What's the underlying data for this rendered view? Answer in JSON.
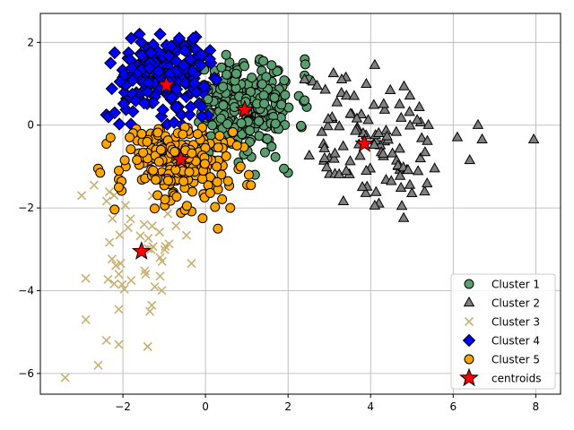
{
  "chart_data": {
    "type": "scatter",
    "title": "",
    "xlabel": "",
    "ylabel": "",
    "xlim": [
      -4.0,
      8.6
    ],
    "ylim": [
      -6.5,
      2.7
    ],
    "xticks": [
      -2,
      0,
      2,
      4,
      6,
      8
    ],
    "xtick_labels": [
      "−2",
      "0",
      "2",
      "4",
      "6",
      "8"
    ],
    "yticks": [
      -6,
      -4,
      -2,
      0,
      2
    ],
    "ytick_labels": [
      "−6",
      "−4",
      "−2",
      "0",
      "2"
    ],
    "grid": true,
    "legend_position": "lower-right",
    "series": [
      {
        "name": "Cluster 1",
        "marker": "circle",
        "color": "#5a9e6f",
        "center": [
          0.9,
          0.5
        ],
        "spread": [
          0.65,
          0.55
        ],
        "count": 260,
        "seed": 11,
        "bounds": [
          -0.2,
          2.5,
          -1.2,
          1.7
        ],
        "points": [
          [
            0.5,
            1.7
          ],
          [
            1.4,
            1.55
          ],
          [
            1.6,
            1.45
          ],
          [
            2.4,
            1.2
          ],
          [
            2.5,
            1.1
          ],
          [
            1.2,
            -1.2
          ],
          [
            0.8,
            -0.9
          ],
          [
            2.0,
            -1.15
          ],
          [
            1.9,
            -1.05
          ],
          [
            -0.1,
            0.3
          ],
          [
            2.4,
            0.6
          ]
        ]
      },
      {
        "name": "Cluster 2",
        "marker": "triangle",
        "color": "#808080",
        "center": [
          4.0,
          -0.5
        ],
        "spread": [
          0.9,
          0.65
        ],
        "count": 90,
        "seed": 23,
        "bounds": [
          2.2,
          5.4,
          -2.0,
          1.0
        ],
        "points": [
          [
            3.1,
            1.25
          ],
          [
            3.4,
            1.15
          ],
          [
            3.3,
            1.1
          ],
          [
            4.1,
            1.45
          ],
          [
            3.6,
            0.7
          ],
          [
            4.7,
            0.5
          ],
          [
            2.4,
            1.1
          ],
          [
            2.6,
            1.05
          ],
          [
            2.7,
            0.95
          ],
          [
            2.9,
            0.85
          ],
          [
            6.1,
            -0.3
          ],
          [
            6.6,
            0.0
          ],
          [
            6.7,
            -0.35
          ],
          [
            6.4,
            -0.85
          ],
          [
            7.95,
            -0.35
          ],
          [
            5.4,
            0.0
          ],
          [
            5.55,
            -1.05
          ],
          [
            4.8,
            -2.25
          ],
          [
            4.95,
            -1.45
          ],
          [
            5.0,
            -1.65
          ],
          [
            4.2,
            -1.9
          ],
          [
            4.1,
            -1.95
          ],
          [
            3.8,
            -1.5
          ],
          [
            4.3,
            -0.7
          ]
        ]
      },
      {
        "name": "Cluster 3",
        "marker": "x",
        "color": "#c8b071",
        "center": [
          -1.6,
          -3.0
        ],
        "spread": [
          0.55,
          0.8
        ],
        "count": 38,
        "seed": 37,
        "bounds": [
          -2.6,
          -0.3,
          -4.0,
          -1.6
        ],
        "points": [
          [
            -3.4,
            -6.1
          ],
          [
            -2.6,
            -5.8
          ],
          [
            -2.4,
            -5.2
          ],
          [
            -2.1,
            -5.3
          ],
          [
            -1.4,
            -5.35
          ],
          [
            -1.35,
            -4.5
          ],
          [
            -1.3,
            -4.35
          ],
          [
            -2.1,
            -4.45
          ],
          [
            -2.9,
            -4.7
          ],
          [
            -2.9,
            -3.7
          ],
          [
            -3.0,
            -1.7
          ],
          [
            -2.7,
            -1.45
          ],
          [
            -2.1,
            -3.6
          ],
          [
            -1.45,
            -3.6
          ],
          [
            -1.1,
            -3.65
          ],
          [
            -1.1,
            -3.2
          ]
        ]
      },
      {
        "name": "Cluster 4",
        "marker": "diamond",
        "color": "#0000ff",
        "center": [
          -1.0,
          1.1
        ],
        "spread": [
          0.75,
          0.6
        ],
        "count": 190,
        "seed": 53,
        "bounds": [
          -2.4,
          0.4,
          -0.05,
          2.3
        ],
        "points": [
          [
            -2.4,
            0.25
          ],
          [
            -2.35,
            0.2
          ],
          [
            -2.2,
            0.3
          ],
          [
            -1.8,
            2.1
          ],
          [
            -1.6,
            2.2
          ],
          [
            -1.1,
            2.2
          ],
          [
            -0.3,
            2.1
          ],
          [
            -0.5,
            1.8
          ],
          [
            -0.1,
            1.7
          ],
          [
            0.1,
            1.6
          ],
          [
            -2.2,
            1.75
          ],
          [
            -2.3,
            1.5
          ]
        ]
      },
      {
        "name": "Cluster 5",
        "marker": "circle",
        "color": "#ffa500",
        "center": [
          -0.6,
          -0.8
        ],
        "spread": [
          0.75,
          0.6
        ],
        "count": 230,
        "seed": 71,
        "bounds": [
          -2.3,
          1.2,
          -2.5,
          -0.05
        ],
        "points": [
          [
            -2.4,
            -0.45
          ],
          [
            -2.3,
            -0.3
          ],
          [
            -2.6,
            -1.05
          ],
          [
            -2.55,
            -1.15
          ],
          [
            -2.1,
            -1.5
          ],
          [
            -2.1,
            -1.1
          ],
          [
            0.3,
            -2.5
          ],
          [
            0.6,
            -2.0
          ],
          [
            1.1,
            -1.45
          ],
          [
            1.05,
            -1.2
          ],
          [
            0.85,
            -1.0
          ],
          [
            -0.5,
            -2.05
          ],
          [
            -0.45,
            -1.95
          ]
        ]
      },
      {
        "name": "centroids",
        "marker": "star",
        "color": "#ff0000",
        "points": [
          [
            -0.95,
            0.97
          ],
          [
            0.95,
            0.37
          ],
          [
            3.85,
            -0.45
          ],
          [
            -0.6,
            -0.83
          ],
          [
            -1.55,
            -3.05
          ]
        ]
      }
    ]
  }
}
